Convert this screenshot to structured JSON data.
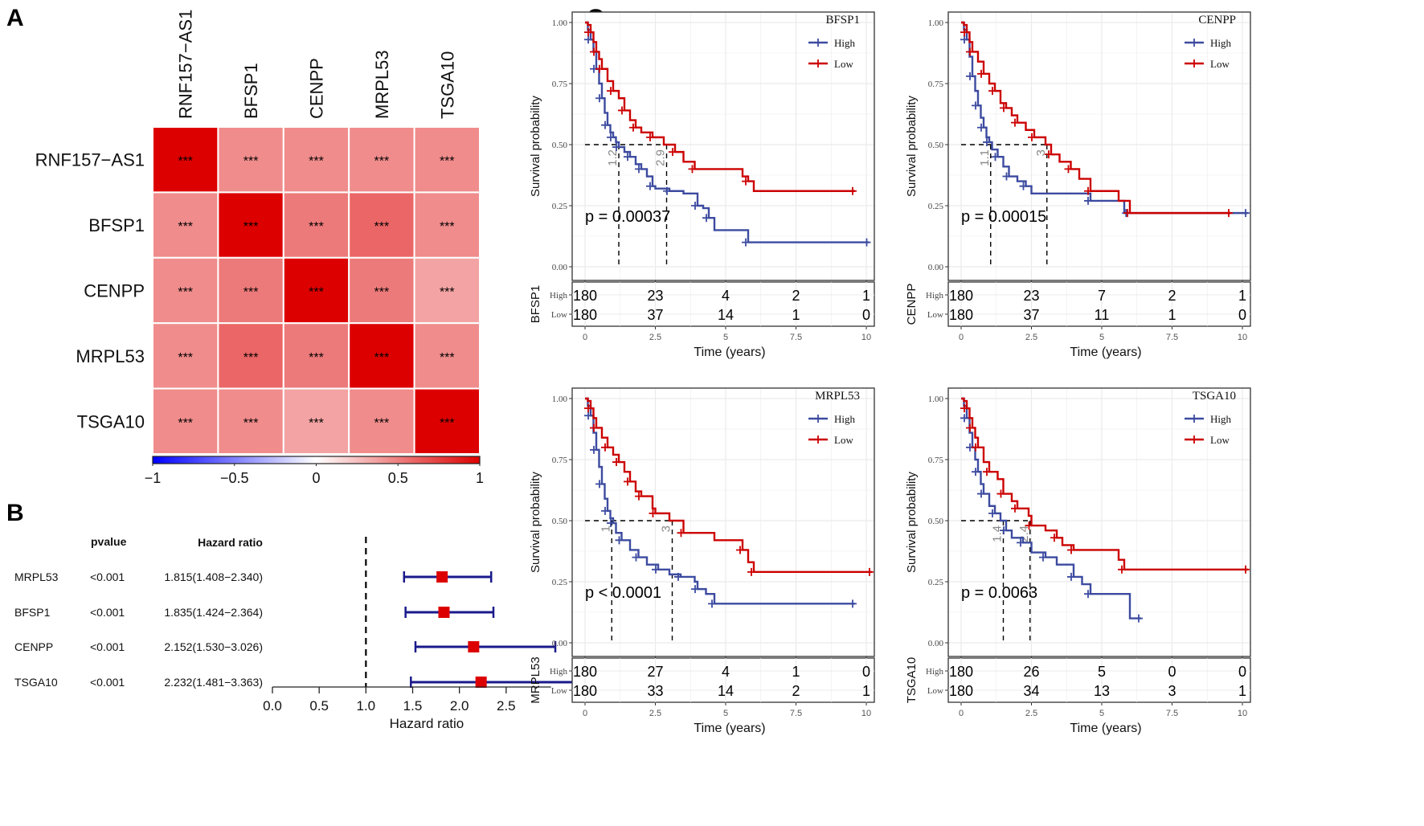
{
  "panels": {
    "a": "A",
    "b": "B",
    "c": "C"
  },
  "chart_data": [
    {
      "type": "heatmap",
      "id": "correlation-heatmap",
      "title": "",
      "row_labels": [
        "RNF157−AS1",
        "BFSP1",
        "CENPP",
        "MRPL53",
        "TSGA10"
      ],
      "col_labels": [
        "RNF157−AS1",
        "BFSP1",
        "CENPP",
        "MRPL53",
        "TSGA10"
      ],
      "values": [
        [
          1.0,
          0.45,
          0.45,
          0.45,
          0.45
        ],
        [
          0.45,
          1.0,
          0.52,
          0.6,
          0.45
        ],
        [
          0.45,
          0.52,
          1.0,
          0.52,
          0.36
        ],
        [
          0.45,
          0.6,
          0.52,
          1.0,
          0.45
        ],
        [
          0.45,
          0.45,
          0.36,
          0.45,
          1.0
        ]
      ],
      "annotations": [
        [
          "***",
          "***",
          "***",
          "***",
          "***"
        ],
        [
          "***",
          "***",
          "***",
          "***",
          "***"
        ],
        [
          "***",
          "***",
          "***",
          "***",
          "***"
        ],
        [
          "***",
          "***",
          "***",
          "***",
          "***"
        ],
        [
          "***",
          "***",
          "***",
          "***",
          "***"
        ]
      ],
      "colorbar": {
        "min": -1,
        "max": 1,
        "ticks": [
          "−1",
          "−0.5",
          "0",
          "0.5",
          "1"
        ],
        "tick_values": [
          -1,
          -0.5,
          0,
          0.5,
          1
        ],
        "low_color": "#0000ff",
        "mid_color": "#ffffff",
        "high_color": "#dd0000"
      }
    },
    {
      "type": "forest",
      "id": "forest-plot",
      "column_headers": {
        "pvalue": "pvalue",
        "hr": "Hazard ratio"
      },
      "rows": [
        {
          "gene": "MRPL53",
          "pvalue": "<0.001",
          "hr_text": "1.815(1.408−2.340)",
          "hr": 1.815,
          "lo": 1.408,
          "hi": 2.34
        },
        {
          "gene": "BFSP1",
          "pvalue": "<0.001",
          "hr_text": "1.835(1.424−2.364)",
          "hr": 1.835,
          "lo": 1.424,
          "hi": 2.364
        },
        {
          "gene": "CENPP",
          "pvalue": "<0.001",
          "hr_text": "2.152(1.530−3.026)",
          "hr": 2.152,
          "lo": 1.53,
          "hi": 3.026
        },
        {
          "gene": "TSGA10",
          "pvalue": "<0.001",
          "hr_text": "2.232(1.481−3.363)",
          "hr": 2.232,
          "lo": 1.481,
          "hi": 3.363
        }
      ],
      "xlabel": "Hazard ratio",
      "xticks": [
        "0.0",
        "0.5",
        "1.0",
        "1.5",
        "2.0",
        "2.5"
      ],
      "xtick_values": [
        0,
        0.5,
        1.0,
        1.5,
        2.0,
        2.5
      ],
      "xlim": [
        0,
        3.0
      ],
      "reference_line": 1.0,
      "box_color": "#dd0000",
      "ci_color": "#1a1a8c"
    },
    {
      "type": "line",
      "id": "km-bfsp1",
      "legend_title": "BFSP1",
      "legend": [
        "High",
        "Low"
      ],
      "ylabel": "Survival probability",
      "xlabel": "Time (years)",
      "yticks": [
        "0.00",
        "0.25",
        "0.50",
        "0.75",
        "1.00"
      ],
      "xticks": [
        "0",
        "2.5",
        "5",
        "7.5",
        "10"
      ],
      "xlim": [
        0,
        10
      ],
      "ylim": [
        0,
        1
      ],
      "pvalue": "p = 0.00037",
      "median": {
        "high": "1.2",
        "low": "2.9",
        "high_x": 1.2,
        "low_x": 2.9
      },
      "series": [
        {
          "name": "High",
          "color": "#3c4ba0",
          "x": [
            0,
            0.1,
            0.2,
            0.3,
            0.4,
            0.5,
            0.6,
            0.7,
            0.8,
            0.9,
            1.0,
            1.1,
            1.2,
            1.4,
            1.6,
            1.8,
            2.0,
            2.2,
            2.4,
            2.5,
            3.0,
            3.5,
            4.0,
            4.2,
            4.4,
            4.6,
            5.8,
            10.1
          ],
          "y": [
            1,
            0.97,
            0.93,
            0.88,
            0.81,
            0.75,
            0.69,
            0.63,
            0.58,
            0.55,
            0.53,
            0.51,
            0.49,
            0.47,
            0.45,
            0.42,
            0.4,
            0.37,
            0.33,
            0.32,
            0.31,
            0.3,
            0.25,
            0.24,
            0.2,
            0.15,
            0.1,
            0.1
          ]
        },
        {
          "name": "Low",
          "color": "#cc0000",
          "x": [
            0,
            0.1,
            0.2,
            0.3,
            0.4,
            0.5,
            0.6,
            0.8,
            1.0,
            1.2,
            1.4,
            1.6,
            1.8,
            2.0,
            2.4,
            2.8,
            3.2,
            3.5,
            3.9,
            5.6,
            5.8,
            6.0,
            9.6
          ],
          "y": [
            1,
            0.99,
            0.96,
            0.92,
            0.88,
            0.85,
            0.81,
            0.76,
            0.72,
            0.69,
            0.64,
            0.6,
            0.57,
            0.55,
            0.53,
            0.5,
            0.47,
            0.43,
            0.4,
            0.37,
            0.35,
            0.31,
            0.31
          ]
        }
      ],
      "risk_table": {
        "label": "BFSP1",
        "rows": [
          {
            "name": "High",
            "values": [
              "180",
              "23",
              "4",
              "2",
              "1"
            ]
          },
          {
            "name": "Low",
            "values": [
              "180",
              "37",
              "14",
              "1",
              "0"
            ]
          }
        ]
      }
    },
    {
      "type": "line",
      "id": "km-cenpp",
      "legend_title": "CENPP",
      "legend": [
        "High",
        "Low"
      ],
      "ylabel": "Survival probability",
      "xlabel": "Time (years)",
      "yticks": [
        "0.00",
        "0.25",
        "0.50",
        "0.75",
        "1.00"
      ],
      "xticks": [
        "0",
        "2.5",
        "5",
        "7.5",
        "10"
      ],
      "xlim": [
        0,
        10
      ],
      "ylim": [
        0,
        1
      ],
      "pvalue": "p = 0.00015",
      "median": {
        "high": "1.1",
        "low": "3",
        "high_x": 1.05,
        "low_x": 3.05
      },
      "series": [
        {
          "name": "High",
          "color": "#3c4ba0",
          "x": [
            0,
            0.1,
            0.2,
            0.3,
            0.4,
            0.5,
            0.6,
            0.7,
            0.8,
            0.9,
            1.0,
            1.1,
            1.3,
            1.5,
            1.7,
            2.0,
            2.3,
            2.5,
            4.6,
            5.8,
            5.95,
            10.2
          ],
          "y": [
            1,
            0.97,
            0.93,
            0.86,
            0.78,
            0.72,
            0.66,
            0.61,
            0.57,
            0.53,
            0.51,
            0.48,
            0.45,
            0.41,
            0.37,
            0.35,
            0.33,
            0.3,
            0.27,
            0.22,
            0.22,
            0.22
          ]
        },
        {
          "name": "Low",
          "color": "#cc0000",
          "x": [
            0,
            0.1,
            0.2,
            0.3,
            0.4,
            0.6,
            0.8,
            1.0,
            1.2,
            1.4,
            1.6,
            1.8,
            2.0,
            2.3,
            2.6,
            3.0,
            3.2,
            3.5,
            3.9,
            4.2,
            4.6,
            5.6,
            6.0,
            9.6
          ],
          "y": [
            1,
            0.99,
            0.96,
            0.92,
            0.88,
            0.84,
            0.79,
            0.75,
            0.72,
            0.67,
            0.65,
            0.62,
            0.59,
            0.56,
            0.53,
            0.5,
            0.46,
            0.43,
            0.4,
            0.36,
            0.31,
            0.27,
            0.22,
            0.22
          ]
        }
      ],
      "risk_table": {
        "label": "CENPP",
        "rows": [
          {
            "name": "High",
            "values": [
              "180",
              "23",
              "7",
              "2",
              "1"
            ]
          },
          {
            "name": "Low",
            "values": [
              "180",
              "37",
              "11",
              "1",
              "0"
            ]
          }
        ]
      }
    },
    {
      "type": "line",
      "id": "km-mrpl53",
      "legend_title": "MRPL53",
      "legend": [
        "High",
        "Low"
      ],
      "ylabel": "Survival probability",
      "xlabel": "Time (years)",
      "yticks": [
        "0.00",
        "0.25",
        "0.50",
        "0.75",
        "1.00"
      ],
      "xticks": [
        "0",
        "2.5",
        "5",
        "7.5",
        "10"
      ],
      "xlim": [
        0,
        10
      ],
      "ylim": [
        0,
        1
      ],
      "pvalue": "p < 0.0001",
      "median": {
        "high": "1",
        "low": "3",
        "high_x": 0.95,
        "low_x": 3.1
      },
      "series": [
        {
          "name": "High",
          "color": "#3c4ba0",
          "x": [
            0,
            0.1,
            0.2,
            0.3,
            0.4,
            0.5,
            0.6,
            0.7,
            0.8,
            0.9,
            1.0,
            1.1,
            1.3,
            1.6,
            1.9,
            2.2,
            2.6,
            3.0,
            3.4,
            3.9,
            4.0,
            4.3,
            4.6,
            9.6
          ],
          "y": [
            1,
            0.97,
            0.93,
            0.86,
            0.79,
            0.72,
            0.65,
            0.59,
            0.54,
            0.51,
            0.49,
            0.45,
            0.42,
            0.38,
            0.35,
            0.32,
            0.3,
            0.28,
            0.27,
            0.25,
            0.22,
            0.2,
            0.16,
            0.16
          ]
        },
        {
          "name": "Low",
          "color": "#cc0000",
          "x": [
            0,
            0.1,
            0.2,
            0.3,
            0.4,
            0.6,
            0.8,
            1.0,
            1.2,
            1.4,
            1.6,
            1.8,
            2.0,
            2.4,
            2.5,
            3.0,
            3.5,
            4.6,
            5.6,
            5.8,
            6.0,
            10.2
          ],
          "y": [
            1,
            0.99,
            0.96,
            0.92,
            0.88,
            0.84,
            0.8,
            0.77,
            0.74,
            0.7,
            0.66,
            0.62,
            0.6,
            0.55,
            0.53,
            0.5,
            0.45,
            0.42,
            0.38,
            0.33,
            0.29,
            0.29
          ]
        }
      ],
      "risk_table": {
        "label": "MRPL53",
        "rows": [
          {
            "name": "High",
            "values": [
              "180",
              "27",
              "4",
              "1",
              "0"
            ]
          },
          {
            "name": "Low",
            "values": [
              "180",
              "33",
              "14",
              "2",
              "1"
            ]
          }
        ]
      }
    },
    {
      "type": "line",
      "id": "km-tsga10",
      "legend_title": "TSGA10",
      "legend": [
        "High",
        "Low"
      ],
      "ylabel": "Survival probability",
      "xlabel": "Time (years)",
      "yticks": [
        "0.00",
        "0.25",
        "0.50",
        "0.75",
        "1.00"
      ],
      "xticks": [
        "0",
        "2.5",
        "5",
        "7.5",
        "10"
      ],
      "xlim": [
        0,
        10
      ],
      "ylim": [
        0,
        1
      ],
      "pvalue": "p = 0.0063",
      "median": {
        "high": "1.4",
        "low": "2.4",
        "high_x": 1.5,
        "low_x": 2.45
      },
      "series": [
        {
          "name": "High",
          "color": "#3c4ba0",
          "x": [
            0,
            0.1,
            0.2,
            0.3,
            0.4,
            0.5,
            0.6,
            0.7,
            0.8,
            1.0,
            1.2,
            1.4,
            1.6,
            1.8,
            2.2,
            2.5,
            3.0,
            3.4,
            4.0,
            4.3,
            4.6,
            6.0,
            6.4
          ],
          "y": [
            1,
            0.97,
            0.92,
            0.86,
            0.8,
            0.75,
            0.7,
            0.65,
            0.61,
            0.56,
            0.53,
            0.5,
            0.46,
            0.43,
            0.41,
            0.37,
            0.35,
            0.32,
            0.27,
            0.24,
            0.2,
            0.1,
            0.1
          ]
        },
        {
          "name": "Low",
          "color": "#cc0000",
          "x": [
            0,
            0.1,
            0.2,
            0.3,
            0.4,
            0.5,
            0.6,
            0.8,
            1.0,
            1.3,
            1.5,
            1.8,
            2.0,
            2.4,
            2.5,
            3.0,
            3.4,
            3.6,
            4.0,
            5.6,
            5.8,
            10.2
          ],
          "y": [
            1,
            0.99,
            0.96,
            0.92,
            0.88,
            0.84,
            0.8,
            0.74,
            0.7,
            0.67,
            0.61,
            0.58,
            0.55,
            0.52,
            0.48,
            0.46,
            0.43,
            0.4,
            0.38,
            0.34,
            0.3,
            0.3
          ]
        }
      ],
      "risk_table": {
        "label": "TSGA10",
        "rows": [
          {
            "name": "High",
            "values": [
              "180",
              "26",
              "5",
              "0",
              "0"
            ]
          },
          {
            "name": "Low",
            "values": [
              "180",
              "34",
              "13",
              "3",
              "1"
            ]
          }
        ]
      }
    }
  ]
}
